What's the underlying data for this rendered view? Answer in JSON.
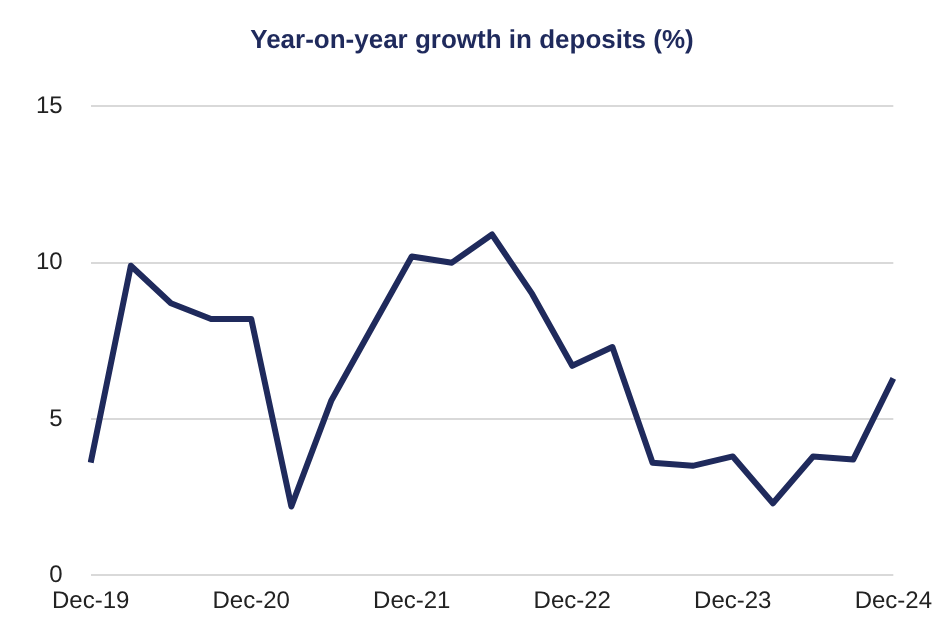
{
  "chart_data": {
    "type": "line",
    "title": "Year-on-year growth in deposits (%)",
    "categories": [
      "Dec-19",
      null,
      null,
      null,
      "Dec-20",
      null,
      null,
      null,
      "Dec-21",
      null,
      null,
      null,
      "Dec-22",
      null,
      null,
      null,
      "Dec-23",
      null,
      null,
      null,
      "Dec-24"
    ],
    "series": [
      {
        "color": "#1f2a5c",
        "values": [
          3.6,
          9.9,
          8.7,
          8.2,
          8.2,
          2.2,
          5.6,
          7.9,
          10.2,
          10.0,
          10.9,
          9.0,
          6.7,
          7.3,
          3.6,
          3.5,
          3.8,
          2.3,
          3.8,
          3.7,
          6.3
        ]
      }
    ],
    "ylim": [
      0,
      15
    ],
    "yticks": [
      0,
      5,
      10,
      15
    ],
    "grid": "y",
    "legend": false,
    "marker": "none",
    "line_style": "solid"
  }
}
